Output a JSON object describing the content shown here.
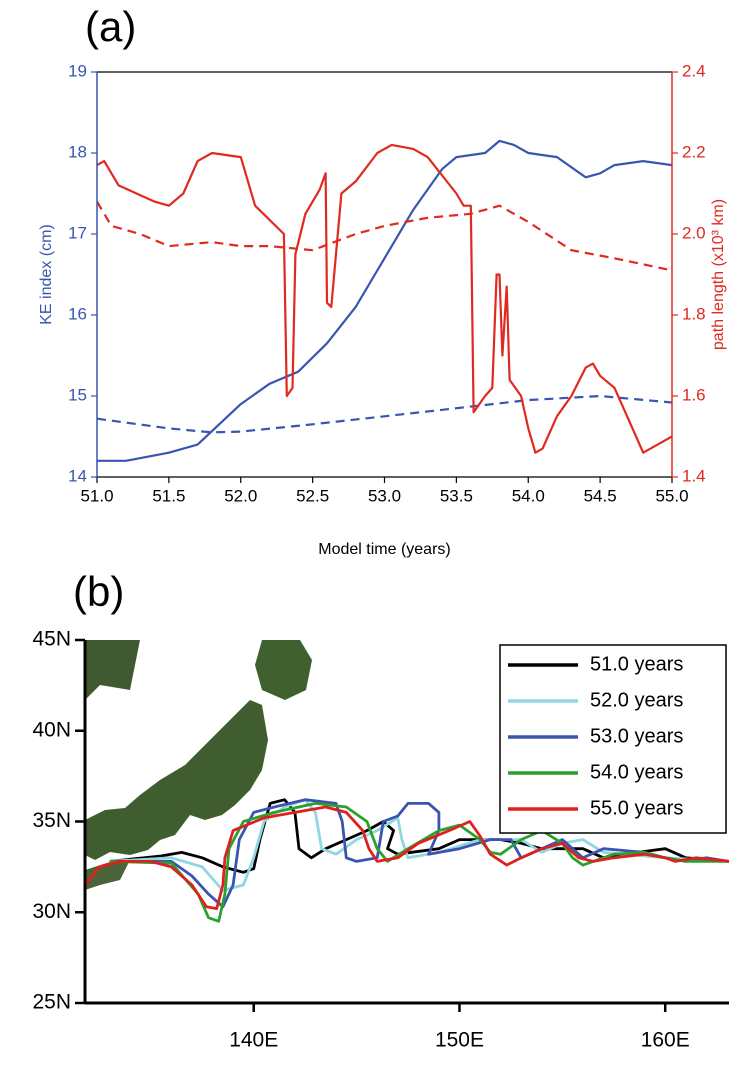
{
  "chart_data": [
    {
      "type": "line",
      "panel_label": "(a)",
      "xlabel": "Model time (years)",
      "ylabel": "KE index (cm)",
      "y2label": "path length (x10³ km)",
      "xlim": [
        51,
        55
      ],
      "xticks": [
        {
          "value": 51,
          "label": "51.0"
        },
        51.5,
        {
          "value": 52,
          "label": "52.0"
        },
        52.5,
        {
          "value": 53,
          "label": "53.0"
        },
        53.5,
        {
          "value": 54,
          "label": "54.0"
        },
        54.5,
        {
          "value": 55,
          "label": "55.0"
        }
      ],
      "ylim": [
        14,
        19
      ],
      "yticks": [
        14,
        15,
        16,
        17,
        18,
        19
      ],
      "y2lim": [
        1.4,
        2.4
      ],
      "y2ticks": [
        1.4,
        1.6,
        1.8,
        {
          "value": 2,
          "label": "2.0"
        },
        2.2,
        2.4
      ],
      "ycolor": "#3a55b0",
      "y2color": "#e02a20",
      "series": [
        {
          "color": "#3a55b0",
          "dash": false,
          "x": [
            51.0,
            51.2,
            51.5,
            51.7,
            52.0,
            52.2,
            52.4,
            52.6,
            52.8,
            53.0,
            53.2,
            53.4,
            53.5,
            53.7,
            53.8,
            53.9,
            54.0,
            54.2,
            54.4,
            54.5,
            54.6,
            54.8,
            55.0
          ],
          "values": [
            14.2,
            14.2,
            14.3,
            14.4,
            14.9,
            15.15,
            15.3,
            15.65,
            16.1,
            16.7,
            17.3,
            17.8,
            17.95,
            18.0,
            18.15,
            18.1,
            18.0,
            17.95,
            17.7,
            17.75,
            17.85,
            17.9,
            17.85
          ]
        },
        {
          "color": "#3a55b0",
          "dash": true,
          "x": [
            51.0,
            51.5,
            51.8,
            52.0,
            52.5,
            53.0,
            53.5,
            54.0,
            54.5,
            55.0
          ],
          "values": [
            14.72,
            14.6,
            14.55,
            14.56,
            14.65,
            14.75,
            14.85,
            14.95,
            15.0,
            14.92
          ]
        },
        {
          "color": "#e02a20",
          "dash": false,
          "axis": "y2",
          "x": [
            51.0,
            51.05,
            51.15,
            51.4,
            51.5,
            51.6,
            51.7,
            51.8,
            52.0,
            52.1,
            52.3,
            52.32,
            52.36,
            52.38,
            52.45,
            52.55,
            52.59,
            52.6,
            52.63,
            52.7,
            52.8,
            52.95,
            53.05,
            53.2,
            53.3,
            53.5,
            53.55,
            53.6,
            53.62,
            53.7,
            53.75,
            53.78,
            53.8,
            53.82,
            53.85,
            53.87,
            53.95,
            54.0,
            54.05,
            54.1,
            54.2,
            54.3,
            54.4,
            54.45,
            54.5,
            54.6,
            54.7,
            54.8,
            54.9,
            55.0
          ],
          "values": [
            2.17,
            2.18,
            2.12,
            2.08,
            2.07,
            2.1,
            2.18,
            2.2,
            2.19,
            2.07,
            2.0,
            1.6,
            1.62,
            1.95,
            2.05,
            2.11,
            2.15,
            1.83,
            1.82,
            2.1,
            2.13,
            2.2,
            2.22,
            2.21,
            2.19,
            2.1,
            2.07,
            2.07,
            1.56,
            1.6,
            1.62,
            1.9,
            1.9,
            1.7,
            1.87,
            1.64,
            1.6,
            1.52,
            1.46,
            1.47,
            1.55,
            1.6,
            1.67,
            1.68,
            1.65,
            1.62,
            1.54,
            1.46,
            1.48,
            1.5
          ]
        },
        {
          "color": "#e02a20",
          "dash": true,
          "axis": "y2",
          "x": [
            51.0,
            51.1,
            51.3,
            51.5,
            51.8,
            52.0,
            52.2,
            52.5,
            52.8,
            53.0,
            53.3,
            53.6,
            53.8,
            54.0,
            54.3,
            54.6,
            55.0
          ],
          "values": [
            2.08,
            2.02,
            2.0,
            1.97,
            1.98,
            1.97,
            1.97,
            1.96,
            2.0,
            2.02,
            2.04,
            2.05,
            2.07,
            2.03,
            1.96,
            1.94,
            1.91
          ]
        }
      ]
    },
    {
      "type": "line",
      "panel_label": "(b)",
      "xlim": [
        131.8,
        163.1
      ],
      "xticks": [
        {
          "value": 140,
          "label": "140E"
        },
        {
          "value": 150,
          "label": "150E"
        },
        {
          "value": 160,
          "label": "160E"
        }
      ],
      "ylim": [
        25,
        45
      ],
      "yticks": [
        {
          "value": 25,
          "label": "25N"
        },
        {
          "value": 30,
          "label": "30N"
        },
        {
          "value": 35,
          "label": "35N"
        },
        {
          "value": 40,
          "label": "40N"
        },
        {
          "value": 45,
          "label": "45N"
        }
      ],
      "series": [
        {
          "name": "51.0 years",
          "color": "#000000",
          "x": [
            133,
            135.5,
            136.5,
            137.5,
            138.5,
            139.5,
            140,
            140.3,
            140.8,
            141.5,
            142,
            142.2,
            142.8,
            143.5,
            144.5,
            145.5,
            146.3,
            146.8,
            146.5,
            147,
            149,
            150,
            152,
            153,
            154,
            156,
            157,
            158,
            160,
            161,
            163.1
          ],
          "values": [
            32.8,
            33.1,
            33.3,
            33,
            32.5,
            32.2,
            32.4,
            34,
            36,
            36.2,
            35.5,
            33.5,
            33,
            33.5,
            34,
            34.5,
            35,
            34.5,
            33.5,
            33.2,
            33.5,
            34,
            34,
            33.8,
            33.5,
            33.5,
            33,
            33.2,
            33.5,
            33,
            32.8
          ]
        },
        {
          "name": "52.0 years",
          "color": "#8fd8e2",
          "x": [
            133,
            136,
            137.5,
            138.5,
            139.5,
            140,
            140.5,
            141.5,
            142.5,
            143,
            143.3,
            144,
            145,
            146,
            147,
            147.2,
            147.5,
            149,
            151,
            153,
            154,
            155,
            156,
            157,
            158,
            160,
            163.1
          ],
          "values": [
            32.8,
            33,
            32.5,
            31.2,
            31.5,
            33,
            35,
            35.8,
            36.2,
            35.5,
            33.5,
            33.2,
            34,
            34.5,
            35.2,
            34,
            33,
            33.3,
            34,
            34,
            33.3,
            33.8,
            34,
            33.3,
            33.2,
            33,
            32.8
          ]
        },
        {
          "name": "53.0 years",
          "color": "#3a55b0",
          "x": [
            133,
            136,
            137,
            137.8,
            138.5,
            139,
            139.3,
            140,
            141,
            142.5,
            144,
            144.3,
            144.5,
            145,
            146,
            146.3,
            147,
            147.5,
            148.5,
            149,
            149,
            148.5,
            150,
            151.5,
            152.5,
            153,
            154,
            155,
            155.5,
            156,
            157,
            159,
            160,
            161,
            162,
            163.1
          ],
          "values": [
            32.8,
            32.8,
            32,
            31,
            30.3,
            31.5,
            34,
            35.5,
            35.8,
            36.2,
            36,
            35,
            33,
            32.8,
            33,
            35,
            35.3,
            36,
            36,
            35.5,
            34.5,
            33.2,
            33.5,
            34,
            34,
            33,
            33.5,
            34,
            33.5,
            33,
            33.5,
            33.3,
            33,
            32.8,
            33,
            32.8
          ]
        },
        {
          "name": "54.0 years",
          "color": "#2ca02c",
          "x": [
            133,
            136,
            137.3,
            137.8,
            138.3,
            138.6,
            138.8,
            139.5,
            141,
            143,
            144.5,
            145.5,
            146,
            146.5,
            147.5,
            149,
            150,
            151,
            151.5,
            152,
            153,
            154,
            155,
            155.5,
            156,
            157.5,
            159,
            160,
            161,
            163.1
          ],
          "values": [
            32.8,
            32.7,
            31,
            29.7,
            29.5,
            31,
            33.5,
            35,
            35.5,
            36,
            35.8,
            35,
            33.5,
            32.8,
            33.5,
            34.5,
            34.8,
            34,
            33.3,
            33.2,
            34,
            34.5,
            33.8,
            33,
            32.6,
            33.2,
            33.3,
            33,
            32.8,
            32.8
          ]
        },
        {
          "name": "55.0 years",
          "color": "#e02020",
          "x": [
            131.8,
            132.5,
            133.5,
            135,
            136,
            137,
            137.7,
            138.2,
            138.5,
            138.6,
            139,
            140.5,
            142,
            143.5,
            144.5,
            145.3,
            145.6,
            146,
            147,
            148,
            149.5,
            150.5,
            151,
            151.5,
            152.3,
            153,
            154,
            155,
            155.8,
            156.5,
            157.5,
            159,
            160,
            160.5,
            161.5,
            163.1
          ],
          "values": [
            31.5,
            32.5,
            32.8,
            32.8,
            32.5,
            31.5,
            30.3,
            30.2,
            31.5,
            33,
            34.5,
            35.2,
            35.5,
            35.8,
            35.5,
            34.5,
            33.5,
            32.8,
            33,
            33.8,
            34.5,
            35,
            34.2,
            33.2,
            32.6,
            33,
            33.5,
            33.8,
            33,
            32.8,
            33,
            33.2,
            33,
            32.8,
            33,
            32.8
          ]
        }
      ]
    }
  ]
}
